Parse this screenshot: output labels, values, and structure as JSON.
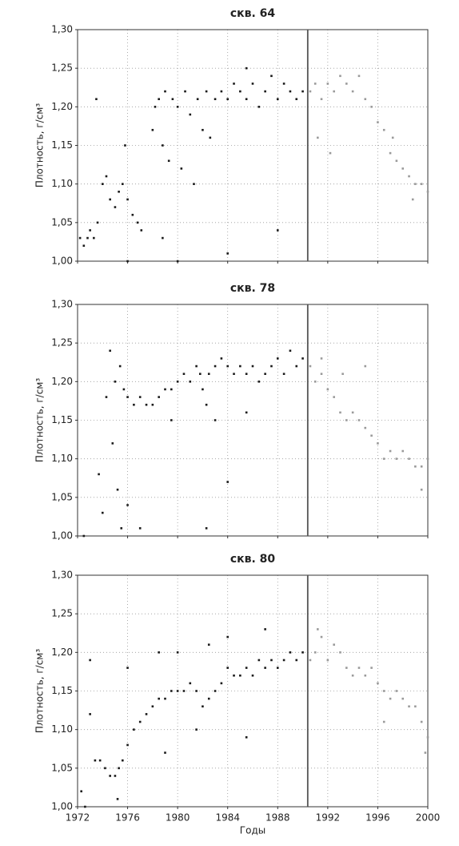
{
  "chart_data": [
    {
      "type": "scatter",
      "title": "скв. 64",
      "ylabel": "Плотность, г/см³",
      "xlim": [
        1972,
        2000
      ],
      "ylim": [
        1.0,
        1.3
      ],
      "grid": true,
      "vline_x": 1990.4,
      "xtick_labels": false,
      "xticks": [
        1972,
        1976,
        1980,
        1984,
        1988,
        1992,
        1996,
        2000
      ],
      "yticks": [
        {
          "value": 1.0,
          "label": "1,00"
        },
        {
          "value": 1.05,
          "label": "1,05"
        },
        {
          "value": 1.1,
          "label": "1,10"
        },
        {
          "value": 1.15,
          "label": "1,15"
        },
        {
          "value": 1.2,
          "label": "1,20"
        },
        {
          "value": 1.25,
          "label": "1,25"
        },
        {
          "value": 1.3,
          "label": "1,30"
        }
      ],
      "series": [
        {
          "color": "#1a1a1a",
          "x": [
            1972.2,
            1972.5,
            1972.8,
            1973.0,
            1973.3,
            1973.6,
            1974.0,
            1974.3,
            1974.6,
            1975.0,
            1975.3,
            1975.6,
            1976.0,
            1976.4,
            1976.8,
            1977.1,
            1973.5,
            1975.8,
            1978.0,
            1978.2,
            1978.5,
            1978.8,
            1979.0,
            1979.3,
            1979.6,
            1980.0,
            1980.3,
            1980.6,
            1981.0,
            1981.3,
            1981.6,
            1982.0,
            1982.3,
            1982.6,
            1983.0,
            1983.5,
            1984.0,
            1984.5,
            1985.0,
            1985.5,
            1986.0,
            1986.5,
            1987.0,
            1987.5,
            1988.0,
            1988.5,
            1989.0,
            1989.5,
            1990.0,
            1984.0,
            1988.0,
            1980.0,
            1978.8,
            1985.5,
            1976.0
          ],
          "values": [
            1.03,
            1.02,
            1.03,
            1.04,
            1.03,
            1.05,
            1.1,
            1.11,
            1.08,
            1.07,
            1.09,
            1.1,
            1.08,
            1.06,
            1.05,
            1.04,
            1.21,
            1.15,
            1.17,
            1.2,
            1.21,
            1.15,
            1.22,
            1.13,
            1.21,
            1.2,
            1.12,
            1.22,
            1.19,
            1.1,
            1.21,
            1.17,
            1.22,
            1.16,
            1.21,
            1.22,
            1.21,
            1.23,
            1.22,
            1.21,
            1.23,
            1.2,
            1.22,
            1.24,
            1.21,
            1.23,
            1.22,
            1.21,
            1.22,
            1.01,
            1.04,
            1.0,
            1.03,
            1.25,
            1.0
          ]
        },
        {
          "color": "#9a9a9a",
          "x": [
            1990.6,
            1991.0,
            1991.5,
            1992.0,
            1992.5,
            1993.0,
            1993.5,
            1994.0,
            1994.5,
            1995.0,
            1995.5,
            1996.0,
            1996.5,
            1997.0,
            1997.5,
            1998.0,
            1998.5,
            1999.0,
            1999.5,
            2000.0,
            1991.2,
            1992.2,
            1997.2,
            1998.8
          ],
          "values": [
            1.22,
            1.23,
            1.21,
            1.23,
            1.22,
            1.24,
            1.23,
            1.22,
            1.24,
            1.21,
            1.2,
            1.18,
            1.17,
            1.14,
            1.13,
            1.12,
            1.11,
            1.1,
            1.1,
            1.09,
            1.16,
            1.14,
            1.16,
            1.08
          ]
        }
      ]
    },
    {
      "type": "scatter",
      "title": "скв. 78",
      "ylabel": "Плотность, г/см³",
      "xlim": [
        1972,
        2000
      ],
      "ylim": [
        1.0,
        1.3
      ],
      "grid": true,
      "vline_x": 1990.4,
      "xtick_labels": false,
      "xticks": [
        1972,
        1976,
        1980,
        1984,
        1988,
        1992,
        1996,
        2000
      ],
      "yticks": [
        {
          "value": 1.0,
          "label": "1,00"
        },
        {
          "value": 1.05,
          "label": "1,05"
        },
        {
          "value": 1.1,
          "label": "1,10"
        },
        {
          "value": 1.15,
          "label": "1,15"
        },
        {
          "value": 1.2,
          "label": "1,20"
        },
        {
          "value": 1.25,
          "label": "1,25"
        },
        {
          "value": 1.3,
          "label": "1,30"
        }
      ],
      "series": [
        {
          "color": "#1a1a1a",
          "x": [
            1972.5,
            1973.7,
            1974.0,
            1974.3,
            1974.6,
            1974.8,
            1975.0,
            1975.2,
            1975.4,
            1975.7,
            1976.0,
            1976.5,
            1977.0,
            1977.5,
            1978.0,
            1978.5,
            1979.0,
            1979.5,
            1980.0,
            1980.5,
            1981.0,
            1981.5,
            1981.8,
            1982.0,
            1982.3,
            1982.5,
            1983.0,
            1983.5,
            1984.0,
            1984.5,
            1985.0,
            1985.5,
            1986.0,
            1986.5,
            1987.0,
            1987.5,
            1988.0,
            1988.5,
            1989.0,
            1989.5,
            1990.0,
            1975.5,
            1977.0,
            1984.0,
            1982.3,
            1976.0,
            1979.5,
            1983.0,
            1985.5
          ],
          "values": [
            1.0,
            1.08,
            1.03,
            1.18,
            1.24,
            1.12,
            1.2,
            1.06,
            1.22,
            1.19,
            1.18,
            1.17,
            1.18,
            1.17,
            1.17,
            1.18,
            1.19,
            1.19,
            1.2,
            1.21,
            1.2,
            1.22,
            1.21,
            1.19,
            1.17,
            1.21,
            1.22,
            1.23,
            1.22,
            1.21,
            1.22,
            1.21,
            1.22,
            1.2,
            1.21,
            1.22,
            1.23,
            1.21,
            1.24,
            1.22,
            1.23,
            1.01,
            1.01,
            1.07,
            1.01,
            1.04,
            1.15,
            1.15,
            1.16
          ]
        },
        {
          "color": "#9a9a9a",
          "x": [
            1990.6,
            1991.0,
            1991.5,
            1992.0,
            1992.5,
            1993.0,
            1993.5,
            1994.0,
            1994.5,
            1995.0,
            1995.5,
            1996.0,
            1996.5,
            1997.0,
            1997.5,
            1998.0,
            1998.5,
            1999.0,
            1999.5,
            2000.0,
            1991.5,
            1995.0,
            1999.5,
            1993.2
          ],
          "values": [
            1.22,
            1.2,
            1.21,
            1.19,
            1.18,
            1.16,
            1.15,
            1.16,
            1.15,
            1.14,
            1.13,
            1.12,
            1.1,
            1.11,
            1.1,
            1.11,
            1.1,
            1.09,
            1.09,
            1.1,
            1.23,
            1.22,
            1.06,
            1.21
          ]
        }
      ]
    },
    {
      "type": "scatter",
      "title": "скв. 80",
      "ylabel": "Плотность, г/см³",
      "xlabel": "Годы",
      "xlim": [
        1972,
        2000
      ],
      "ylim": [
        1.0,
        1.3
      ],
      "grid": true,
      "vline_x": 1990.4,
      "xtick_labels": true,
      "xticks": [
        1972,
        1976,
        1980,
        1984,
        1988,
        1992,
        1996,
        2000
      ],
      "yticks": [
        {
          "value": 1.0,
          "label": "1,00"
        },
        {
          "value": 1.05,
          "label": "1,05"
        },
        {
          "value": 1.1,
          "label": "1,10"
        },
        {
          "value": 1.15,
          "label": "1,15"
        },
        {
          "value": 1.2,
          "label": "1,20"
        },
        {
          "value": 1.25,
          "label": "1,25"
        },
        {
          "value": 1.3,
          "label": "1,30"
        }
      ],
      "series": [
        {
          "color": "#1a1a1a",
          "x": [
            1972.3,
            1972.6,
            1973.0,
            1973.4,
            1973.8,
            1974.2,
            1974.6,
            1975.0,
            1975.3,
            1975.6,
            1976.0,
            1976.5,
            1977.0,
            1977.5,
            1978.0,
            1978.5,
            1979.0,
            1979.5,
            1980.0,
            1980.5,
            1981.0,
            1981.5,
            1982.0,
            1982.5,
            1983.0,
            1983.5,
            1984.0,
            1984.5,
            1985.0,
            1985.5,
            1986.0,
            1986.5,
            1987.0,
            1987.5,
            1988.0,
            1988.5,
            1989.0,
            1989.5,
            1990.0,
            1973.0,
            1975.2,
            1976.0,
            1978.5,
            1980.0,
            1982.5,
            1984.0,
            1987.0,
            1979.0,
            1985.5,
            1981.5
          ],
          "values": [
            1.02,
            1.0,
            1.12,
            1.06,
            1.06,
            1.05,
            1.04,
            1.04,
            1.05,
            1.06,
            1.08,
            1.1,
            1.11,
            1.12,
            1.13,
            1.14,
            1.14,
            1.15,
            1.15,
            1.15,
            1.16,
            1.15,
            1.13,
            1.14,
            1.15,
            1.16,
            1.18,
            1.17,
            1.17,
            1.18,
            1.17,
            1.19,
            1.18,
            1.19,
            1.18,
            1.19,
            1.2,
            1.19,
            1.2,
            1.19,
            1.01,
            1.18,
            1.2,
            1.2,
            1.21,
            1.22,
            1.23,
            1.07,
            1.09,
            1.1
          ]
        },
        {
          "color": "#9a9a9a",
          "x": [
            1990.6,
            1991.0,
            1991.5,
            1992.0,
            1992.5,
            1993.0,
            1993.5,
            1994.0,
            1994.5,
            1995.0,
            1995.5,
            1996.0,
            1996.5,
            1997.0,
            1997.5,
            1998.0,
            1998.5,
            1999.0,
            1999.5,
            2000.0,
            1991.2,
            1996.5,
            1999.8
          ],
          "values": [
            1.19,
            1.2,
            1.22,
            1.19,
            1.21,
            1.2,
            1.18,
            1.17,
            1.18,
            1.17,
            1.18,
            1.16,
            1.15,
            1.14,
            1.15,
            1.14,
            1.13,
            1.13,
            1.11,
            1.09,
            1.23,
            1.11,
            1.07
          ]
        }
      ]
    }
  ]
}
